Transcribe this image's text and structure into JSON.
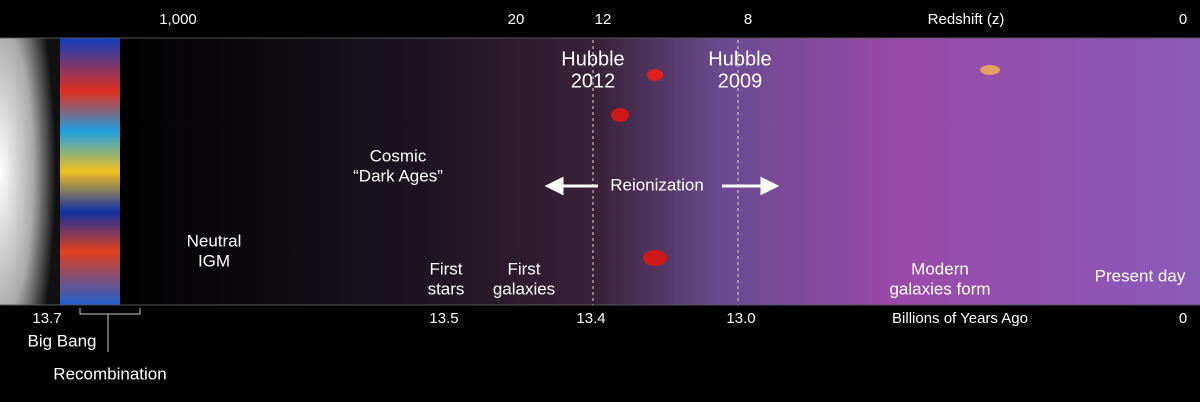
{
  "top_axis": {
    "title": "Redshift (z)",
    "ticks": [
      "1,000",
      "20",
      "12",
      "8",
      "0"
    ]
  },
  "bottom_axis": {
    "title": "Billions of Years Ago",
    "ticks": [
      "13.7",
      "13.5",
      "13.4",
      "13.0",
      "0"
    ]
  },
  "events": [
    "Big Bang",
    "Recombination"
  ],
  "labels": [
    {
      "lines": [
        "Hubble",
        "2012"
      ]
    },
    {
      "lines": [
        "Hubble",
        "2009"
      ]
    },
    {
      "lines": [
        "Cosmic",
        "“Dark Ages”"
      ]
    },
    {
      "lines": [
        "Reionization"
      ]
    },
    {
      "lines": [
        "Neutral",
        "IGM"
      ]
    },
    {
      "lines": [
        "First",
        "stars"
      ]
    },
    {
      "lines": [
        "First",
        "galaxies"
      ]
    },
    {
      "lines": [
        "Modern",
        "galaxies form"
      ]
    },
    {
      "lines": [
        "Present day"
      ]
    }
  ]
}
